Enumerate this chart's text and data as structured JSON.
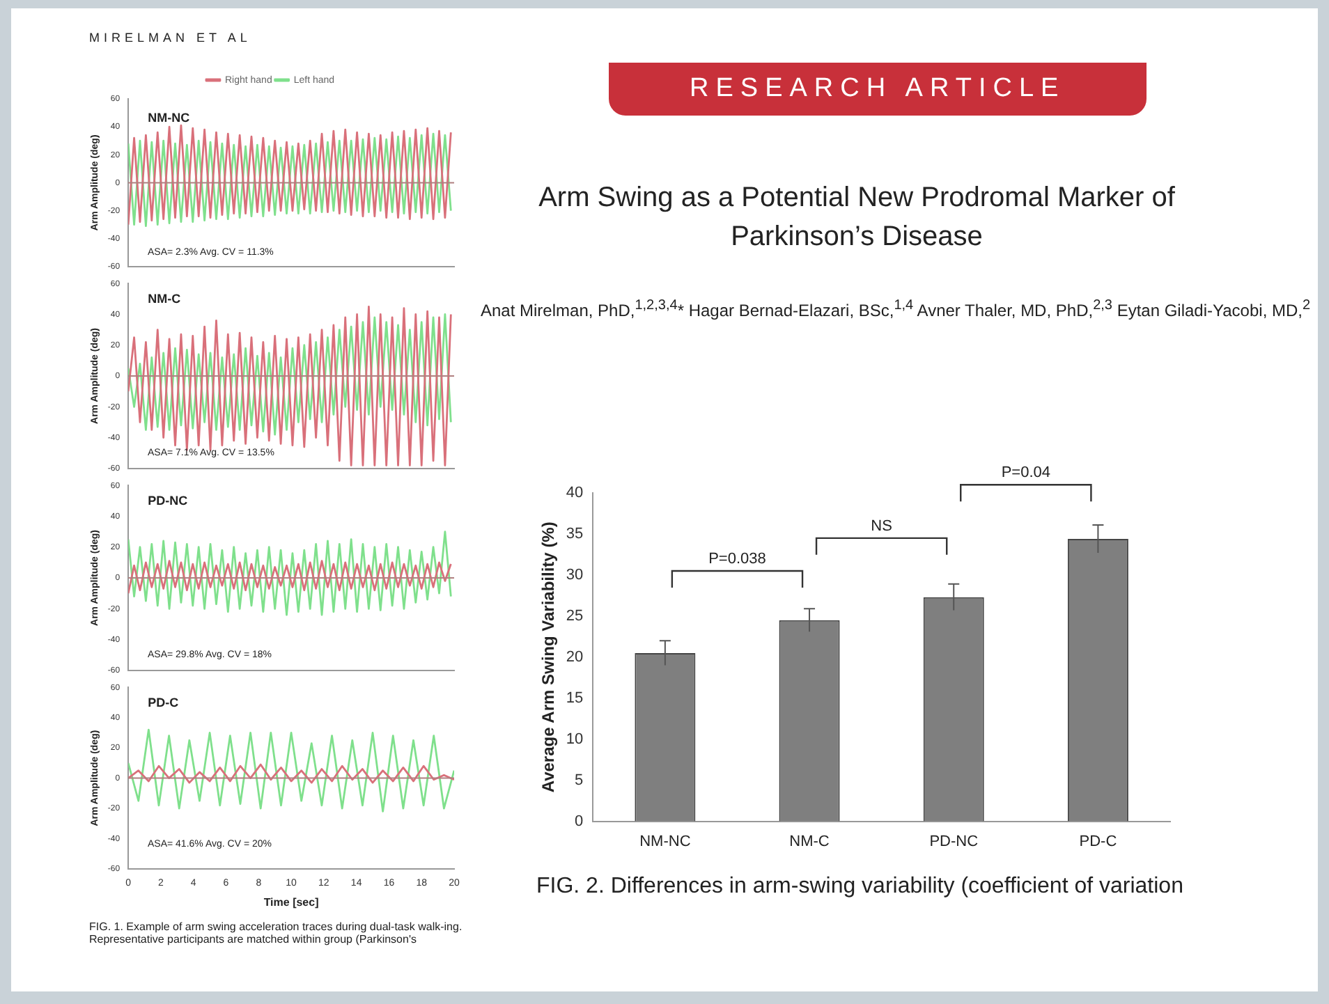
{
  "chart_data": [
    {
      "type": "line",
      "title": "NM-NC",
      "ylabel": "Arm Amplitude (deg)",
      "annotations": [
        "MIRELMAN ET AL",
        "ASA= 2.3% Avg. CV = 11.3%"
      ],
      "legend": "top",
      "tick_labels": "y",
      "xlim": [
        0,
        20
      ],
      "xticks": [
        0,
        2,
        4,
        6,
        8,
        10,
        12,
        14,
        16,
        18,
        20
      ],
      "ylim": [
        -60,
        60
      ],
      "yticks": [
        -60,
        -40,
        -20,
        0,
        20,
        40,
        60
      ],
      "ref_lines": [
        {
          "axis": "y",
          "value": 0,
          "color": "#b08080"
        }
      ],
      "x": [
        0,
        0.36,
        0.72,
        1.08,
        1.44,
        1.8,
        2.16,
        2.52,
        2.88,
        3.24,
        3.6,
        3.96,
        4.32,
        4.68,
        5.04,
        5.4,
        5.76,
        6.12,
        6.48,
        6.84,
        7.2,
        7.56,
        7.92,
        8.28,
        8.64,
        9,
        9.36,
        9.72,
        10.08,
        10.44,
        10.8,
        11.16,
        11.52,
        11.88,
        12.24,
        12.6,
        12.96,
        13.32,
        13.68,
        14.04,
        14.4,
        14.76,
        15.12,
        15.48,
        15.84,
        16.2,
        16.56,
        16.92,
        17.28,
        17.64,
        18,
        18.36,
        18.72,
        19.08,
        19.44,
        19.8
      ],
      "series": [
        {
          "name": "Right hand",
          "color": "#d9707a",
          "values": [
            -30,
            32,
            -28,
            34,
            -27,
            36,
            -26,
            40,
            -25,
            41,
            -24,
            39,
            -24,
            38,
            -25,
            36,
            -23,
            35,
            -22,
            34,
            -22,
            33,
            -21,
            32,
            -20,
            30,
            -20,
            29,
            -20,
            28,
            -19,
            30,
            -20,
            35,
            -21,
            37,
            -22,
            38,
            -23,
            36,
            -24,
            35,
            -24,
            34,
            -25,
            36,
            -25,
            37,
            -26,
            38,
            -25,
            39,
            -26,
            37,
            -25,
            36
          ]
        },
        {
          "name": "Left hand",
          "color": "#7fe08c",
          "values": [
            28,
            -30,
            30,
            -31,
            29,
            -30,
            30,
            -29,
            28,
            -28,
            27,
            -28,
            30,
            -27,
            29,
            -26,
            28,
            -26,
            27,
            -25,
            26,
            -24,
            27,
            -24,
            26,
            -23,
            25,
            -22,
            26,
            -22,
            27,
            -22,
            28,
            -21,
            29,
            -20,
            30,
            -21,
            30,
            -20,
            31,
            -21,
            32,
            -20,
            31,
            -21,
            33,
            -22,
            32,
            -21,
            34,
            -22,
            35,
            -21,
            34,
            -20
          ]
        }
      ]
    },
    {
      "type": "line",
      "title": "NM-C",
      "ylabel": "Arm Amplitude (deg)",
      "annotations": [
        "ASA= 7.1% Avg. CV = 13.5%"
      ],
      "tick_labels": "y",
      "xlim": [
        0,
        20
      ],
      "xticks": [
        0,
        2,
        4,
        6,
        8,
        10,
        12,
        14,
        16,
        18,
        20
      ],
      "ylim": [
        -60,
        60
      ],
      "yticks": [
        -60,
        -40,
        -20,
        0,
        20,
        40,
        60
      ],
      "ref_lines": [
        {
          "axis": "y",
          "value": 0,
          "color": "#b08080"
        }
      ],
      "x": [
        0,
        0.36,
        0.72,
        1.08,
        1.44,
        1.8,
        2.16,
        2.52,
        2.88,
        3.24,
        3.6,
        3.96,
        4.32,
        4.68,
        5.04,
        5.4,
        5.76,
        6.12,
        6.48,
        6.84,
        7.2,
        7.56,
        7.92,
        8.28,
        8.64,
        9,
        9.36,
        9.72,
        10.08,
        10.44,
        10.8,
        11.16,
        11.52,
        11.88,
        12.24,
        12.6,
        12.96,
        13.32,
        13.68,
        14.04,
        14.4,
        14.76,
        15.12,
        15.48,
        15.84,
        16.2,
        16.56,
        16.92,
        17.28,
        17.64,
        18,
        18.36,
        18.72,
        19.08,
        19.44,
        19.8
      ],
      "series": [
        {
          "color": "#d9707a",
          "values": [
            -10,
            25,
            -30,
            22,
            -35,
            30,
            -40,
            24,
            -45,
            27,
            -48,
            26,
            -45,
            32,
            -48,
            36,
            -45,
            27,
            -42,
            28,
            -44,
            25,
            -40,
            22,
            -42,
            26,
            -44,
            24,
            -45,
            25,
            -46,
            27,
            -40,
            30,
            -45,
            33,
            -55,
            38,
            -58,
            40,
            -58,
            45,
            -58,
            40,
            -58,
            38,
            -58,
            44,
            -58,
            40,
            -58,
            42,
            -55,
            38,
            -58,
            40
          ]
        },
        {
          "color": "#7fe08c",
          "values": [
            5,
            -20,
            8,
            -35,
            12,
            -33,
            15,
            -35,
            18,
            -32,
            17,
            -34,
            14,
            -30,
            15,
            -35,
            12,
            -33,
            14,
            -35,
            18,
            -32,
            13,
            -36,
            15,
            -38,
            12,
            -35,
            18,
            -30,
            20,
            -28,
            22,
            -30,
            25,
            -25,
            30,
            -20,
            32,
            -22,
            35,
            -25,
            38,
            -20,
            35,
            -22,
            33,
            -25,
            30,
            -30,
            35,
            -32,
            38,
            -28,
            40,
            -30
          ]
        }
      ]
    },
    {
      "type": "line",
      "title": "PD-NC",
      "ylabel": "Arm Amplitude (deg)",
      "annotations": [
        "ASA= 29.8% Avg. CV = 18%"
      ],
      "tick_labels": "y",
      "xlim": [
        0,
        20
      ],
      "xticks": [
        0,
        2,
        4,
        6,
        8,
        10,
        12,
        14,
        16,
        18,
        20
      ],
      "ylim": [
        -60,
        60
      ],
      "yticks": [
        -60,
        -40,
        -20,
        0,
        20,
        40,
        60
      ],
      "ref_lines": [
        {
          "axis": "y",
          "value": 0,
          "color": "#b08080"
        }
      ],
      "x": [
        0,
        0.36,
        0.72,
        1.08,
        1.44,
        1.8,
        2.16,
        2.52,
        2.88,
        3.24,
        3.6,
        3.96,
        4.32,
        4.68,
        5.04,
        5.4,
        5.76,
        6.12,
        6.48,
        6.84,
        7.2,
        7.56,
        7.92,
        8.28,
        8.64,
        9,
        9.36,
        9.72,
        10.08,
        10.44,
        10.8,
        11.16,
        11.52,
        11.88,
        12.24,
        12.6,
        12.96,
        13.32,
        13.68,
        14.04,
        14.4,
        14.76,
        15.12,
        15.48,
        15.84,
        16.2,
        16.56,
        16.92,
        17.28,
        17.64,
        18,
        18.36,
        18.72,
        19.08,
        19.44,
        19.8
      ],
      "series": [
        {
          "color": "#d9707a",
          "values": [
            -10,
            8,
            -8,
            10,
            -6,
            9,
            -7,
            11,
            -6,
            10,
            -8,
            9,
            -7,
            10,
            -6,
            8,
            -5,
            9,
            -7,
            10,
            -8,
            9,
            -6,
            8,
            -7,
            7,
            -5,
            8,
            -6,
            9,
            -8,
            10,
            -7,
            11,
            -6,
            9,
            -8,
            10,
            -7,
            9,
            -6,
            8,
            -8,
            9,
            -7,
            10,
            -6,
            9,
            -5,
            8,
            -7,
            9,
            -6,
            10,
            -2,
            9
          ]
        },
        {
          "color": "#7fe08c",
          "values": [
            25,
            -12,
            20,
            -15,
            22,
            -18,
            24,
            -20,
            23,
            -16,
            22,
            -18,
            20,
            -20,
            22,
            -17,
            18,
            -22,
            20,
            -20,
            16,
            -18,
            18,
            -22,
            20,
            -20,
            18,
            -24,
            16,
            -22,
            18,
            -20,
            22,
            -24,
            24,
            -22,
            22,
            -20,
            25,
            -22,
            22,
            -20,
            20,
            -21,
            22,
            -18,
            20,
            -20,
            18,
            -16,
            17,
            -14,
            20,
            -10,
            30,
            -12
          ]
        }
      ]
    },
    {
      "type": "line",
      "title": "PD-C",
      "xlabel": "Time [sec]",
      "ylabel": "Arm Amplitude (deg)",
      "annotations": [
        "ASA= 41.6% Avg. CV = 20%",
        "FIG. 1. Example of arm swing acceleration traces during dual-task walk-ing. Representative participants are matched within group (Parkinson's"
      ],
      "xlim": [
        0,
        20
      ],
      "xticks": [
        0,
        2,
        4,
        6,
        8,
        10,
        12,
        14,
        16,
        18,
        20
      ],
      "ylim": [
        -60,
        60
      ],
      "yticks": [
        -60,
        -40,
        -20,
        0,
        20,
        40,
        60
      ],
      "ref_lines": [
        {
          "axis": "y",
          "value": 0,
          "color": "#b08080"
        }
      ],
      "x": [
        0,
        0.625,
        1.25,
        1.875,
        2.5,
        3.125,
        3.75,
        4.375,
        5,
        5.625,
        6.25,
        6.875,
        7.5,
        8.125,
        8.75,
        9.375,
        10,
        10.625,
        11.25,
        11.875,
        12.5,
        13.125,
        13.75,
        14.375,
        15,
        15.625,
        16.25,
        16.875,
        17.5,
        18.125,
        18.75,
        19.375,
        20
      ],
      "series": [
        {
          "color": "#d9707a",
          "values": [
            0,
            5,
            -2,
            8,
            0,
            6,
            -3,
            4,
            -2,
            7,
            -2,
            8,
            0,
            9,
            -1,
            7,
            -2,
            5,
            -3,
            6,
            -2,
            8,
            -1,
            6,
            -3,
            5,
            -2,
            7,
            -2,
            8,
            -1,
            2,
            -1
          ]
        },
        {
          "color": "#7fe08c",
          "values": [
            10,
            -15,
            32,
            -18,
            28,
            -20,
            25,
            -15,
            30,
            -18,
            28,
            -17,
            30,
            -20,
            30,
            -18,
            30,
            -15,
            23,
            -18,
            28,
            -20,
            25,
            -18,
            30,
            -22,
            28,
            -20,
            25,
            -18,
            28,
            -20,
            5
          ]
        }
      ]
    },
    {
      "type": "bar",
      "title": "Arm Swing as a Potential New Prodromal Marker of Parkinson’s Disease",
      "subtitle": "Anat Mirelman, PhD,$^{1,2,3,4}$* Hagar Bernad-Elazari, BSc,$^{1,4}$ Avner Thaler, MD, PhD,$^{2,3}$ Eytan Giladi-Yacobi, MD,$^{2}$",
      "ylabel": "Average Arm Swing Variability (%)",
      "annotations": [
        "RESEARCH ARTICLE",
        "P=0.038",
        "NS",
        "P=0.04",
        "FIG. 2. Differences in arm-swing variability (coefficient of variation"
      ],
      "categories": [
        "NM-NC",
        "NM-C",
        "PD-NC",
        "PD-C"
      ],
      "values": [
        20.5,
        24.5,
        27.3,
        34.4
      ],
      "errors": [
        1.5,
        1.4,
        1.6,
        1.7
      ],
      "color": "#7f7f7f",
      "ylim": [
        0,
        40
      ],
      "yticks": [
        0,
        5,
        10,
        15,
        20,
        25,
        30,
        35,
        40
      ],
      "grid": false,
      "legend": false
    }
  ]
}
